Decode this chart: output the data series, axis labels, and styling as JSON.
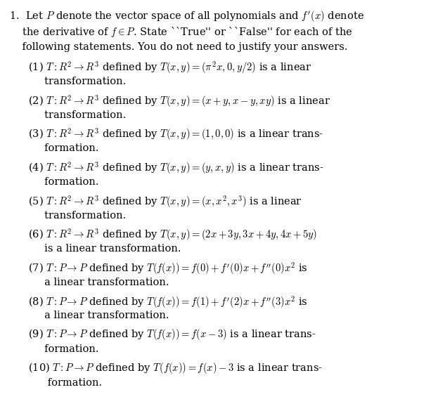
{
  "background_color": "#ffffff",
  "text_color": "#000000",
  "figsize": [
    6.23,
    5.85
  ],
  "dpi": 100,
  "header": "1.\\hspace{2pt} Let $P$ denote the vector space of all polynomials and $f'(x)$ denote the derivative of $f \\in P$. State ``True'' or ``False'' for each of the following statements. You do not need to justify your answers.",
  "items": [
    "(1)\\hspace{4pt} $T : R^2 \\rightarrow R^3$ defined by $T(x, y) = (\\pi^2 x, 0, y/2)$ is a linear transformation.",
    "(2)\\hspace{4pt} $T : R^2 \\rightarrow R^3$ defined by $T(x, y) = (x+y, x-y, xy)$ is a linear transformation.",
    "(3)\\hspace{4pt} $T : R^2 \\rightarrow R^3$ defined by $T(x, y) = (1, 0, 0)$ is a linear transformation.",
    "(4)\\hspace{4pt} $T : R^2 \\rightarrow R^3$ defined by $T(x, y) = (y, x, y)$ is a linear transformation.",
    "(5)\\hspace{4pt} $T : R^2 \\rightarrow R^3$ defined by $T(x, y) = (x, x^2, x^3)$ is a linear transformation.",
    "(6)\\hspace{4pt} $T : R^2 \\rightarrow R^3$ defined by $T(x, y) = (2x+3y, 3x+4y, 4x+5y)$ is a linear transformation.",
    "(7)\\hspace{4pt} $T : P \\rightarrow P$ defined by $T(f(x)) = f(0) + f'(0)x + f''(0)x^2$ is a linear transformation.",
    "(8)\\hspace{4pt} $T : P \\rightarrow P$ defined by $T(f(x)) = f(1) + f'(2)x + f''(3)x^2$ is a linear transformation.",
    "(9)\\hspace{4pt} $T : P \\rightarrow P$ defined by $T(f(x)) = f(x-3)$ is a linear transformation.",
    "(10) $T : P \\rightarrow P$ defined by $T(f(x)) = f(x) - 3$ is a linear transformation."
  ]
}
